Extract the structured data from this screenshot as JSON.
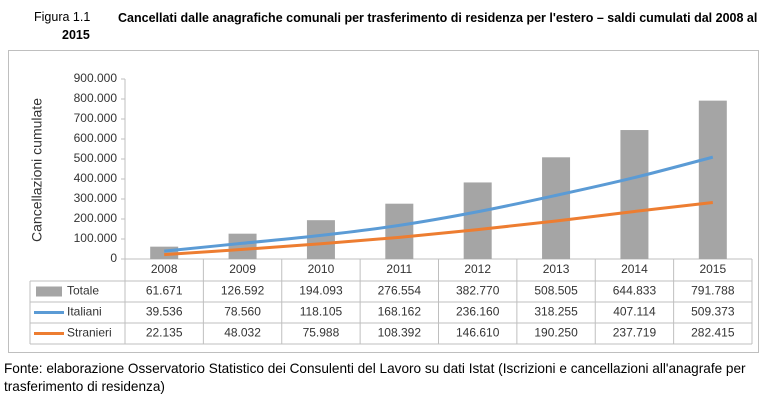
{
  "figure_label": "Figura 1.1",
  "chart_data": {
    "type": "bar",
    "title": "Cancellati dalle anagrafiche comunali per trasferimento di residenza per l'estero – saldi cumulati dal 2008 al 2015",
    "y_label": "Cancellazioni cumulate",
    "categories": [
      "2008",
      "2009",
      "2010",
      "2011",
      "2012",
      "2013",
      "2014",
      "2015"
    ],
    "series": [
      {
        "name": "Totale",
        "type": "bar",
        "color": "#a5a5a5",
        "values": [
          61671,
          126592,
          194093,
          276554,
          382770,
          508505,
          644833,
          791788
        ],
        "value_labels": [
          "61.671",
          "126.592",
          "194.093",
          "276.554",
          "382.770",
          "508.505",
          "644.833",
          "791.788"
        ]
      },
      {
        "name": "Italiani",
        "type": "line",
        "color": "#5b9bd5",
        "values": [
          39536,
          78560,
          118105,
          168162,
          236160,
          318255,
          407114,
          509373
        ],
        "value_labels": [
          "39.536",
          "78.560",
          "118.105",
          "168.162",
          "236.160",
          "318.255",
          "407.114",
          "509.373"
        ]
      },
      {
        "name": "Stranieri",
        "type": "line",
        "color": "#ed7d31",
        "values": [
          22135,
          48032,
          75988,
          108392,
          146610,
          190250,
          237719,
          282415
        ],
        "value_labels": [
          "22.135",
          "48.032",
          "75.988",
          "108.392",
          "146.610",
          "190.250",
          "237.719",
          "282.415"
        ]
      }
    ],
    "ylim": [
      0,
      900000
    ],
    "yticks": [
      0,
      {
        "value": 100000,
        "label": "100.000"
      },
      {
        "value": 200000,
        "label": "200.000"
      },
      {
        "value": 300000,
        "label": "300.000"
      },
      {
        "value": 400000,
        "label": "400.000"
      },
      {
        "value": 500000,
        "label": "500.000"
      },
      {
        "value": 600000,
        "label": "600.000"
      },
      {
        "value": 700000,
        "label": "700.000"
      },
      {
        "value": 800000,
        "label": "800.000"
      },
      {
        "value": 900000,
        "label": "900.000"
      }
    ],
    "grid": false
  },
  "source": "Fonte: elaborazione Osservatorio Statistico dei Consulenti del Lavoro su dati Istat (Iscrizioni e cancellazioni all'anagrafe per trasferimento di residenza)"
}
